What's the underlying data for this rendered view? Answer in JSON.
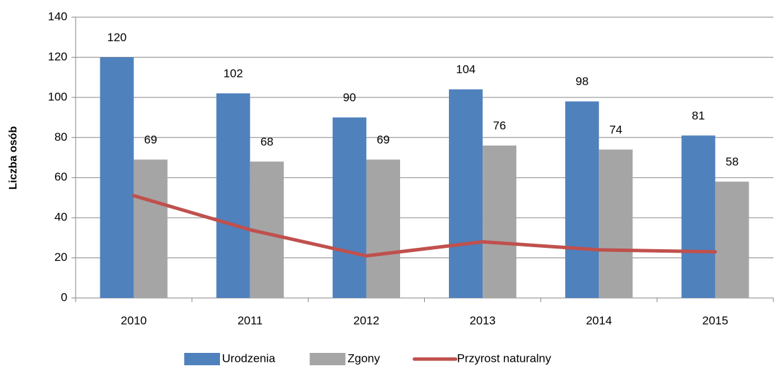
{
  "chart_data": {
    "type": "bar",
    "categories": [
      "2010",
      "2011",
      "2012",
      "2013",
      "2014",
      "2015"
    ],
    "series": [
      {
        "name": "Urodzenia",
        "color": "#4f81bd",
        "values": [
          120,
          102,
          90,
          104,
          98,
          81
        ]
      },
      {
        "name": "Zgony",
        "color": "#a5a5a5",
        "values": [
          69,
          68,
          69,
          76,
          74,
          58
        ]
      },
      {
        "name": "Przyrost naturalny",
        "color": "#c0504d",
        "type": "line",
        "values": [
          51,
          34,
          21,
          28,
          24,
          23
        ]
      }
    ],
    "y_label": "Liczba osób",
    "ylim": [
      0,
      140
    ],
    "yticks": [
      0,
      20,
      40,
      60,
      80,
      100,
      120,
      140
    ],
    "grid": true,
    "data_labels": [
      true,
      true,
      false
    ],
    "legend": "bottom"
  }
}
